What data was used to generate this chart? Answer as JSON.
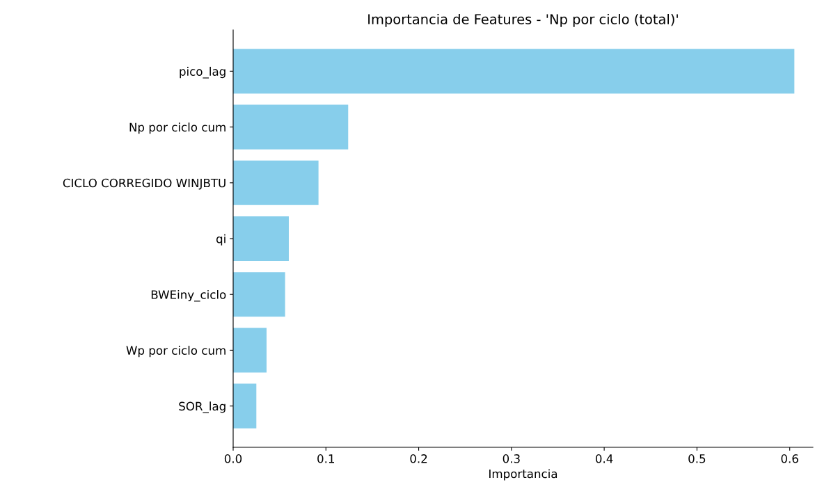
{
  "chart_data": {
    "type": "bar",
    "orientation": "horizontal",
    "title": "Importancia de Features - 'Np por ciclo (total)'",
    "xlabel": "Importancia",
    "categories": [
      "pico_lag",
      "Np por ciclo cum",
      "CICLO CORREGIDO WINJBTU",
      "qi",
      "BWEiny_ciclo",
      "Wp por ciclo cum",
      "SOR_lag"
    ],
    "values": [
      0.605,
      0.124,
      0.092,
      0.06,
      0.056,
      0.036,
      0.025
    ],
    "color": "#87ceeb",
    "xlim": [
      0,
      0.625
    ],
    "xticks": [
      {
        "value": 0,
        "label": "0.0"
      },
      0.1,
      0.2,
      0.3,
      0.4,
      0.5,
      0.6
    ],
    "grid": false,
    "legend": false
  }
}
